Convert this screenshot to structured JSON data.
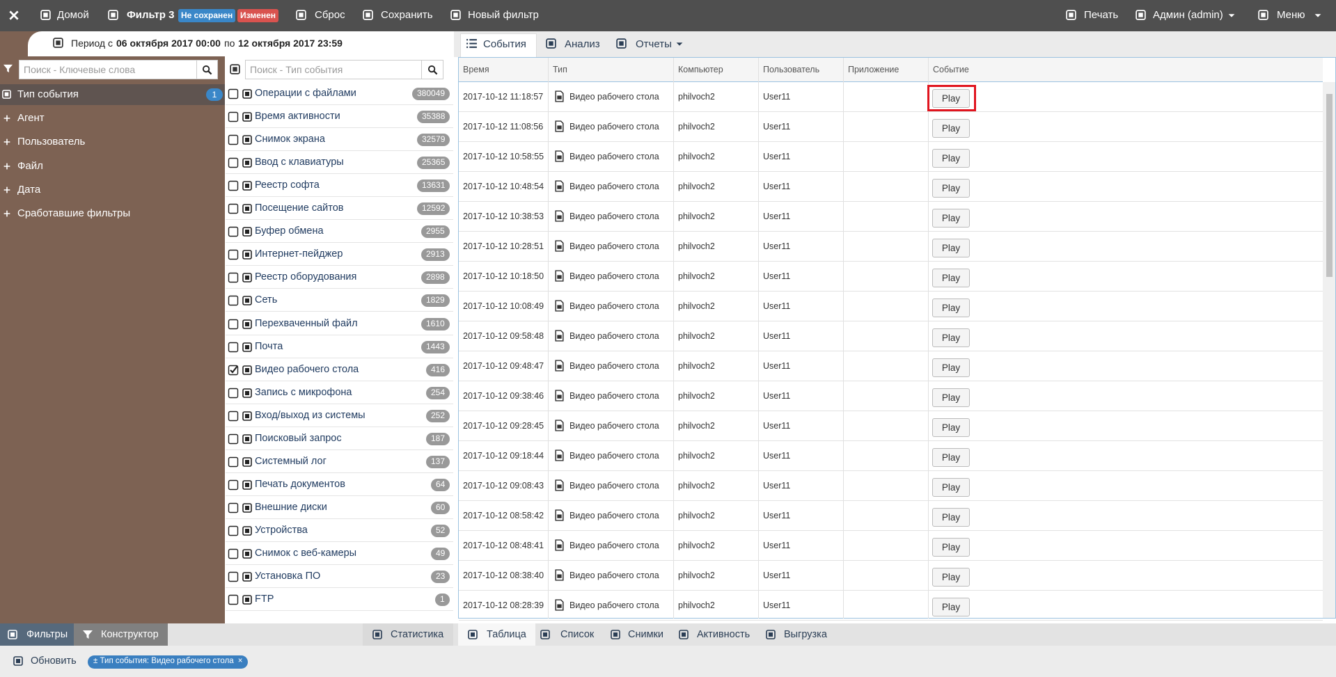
{
  "topbar": {
    "home": "Домой",
    "filter": "Фильтр 3",
    "badge_unsaved": "Не сохранен",
    "badge_changed": "Изменен",
    "reset": "Сброс",
    "save": "Сохранить",
    "new_filter": "Новый фильтр",
    "print": "Печать",
    "user": "Админ (admin)",
    "menu": "Меню"
  },
  "period": {
    "prefix": "Период с",
    "from": "06 октября 2017 00:00",
    "mid": "по",
    "to": "12 октября 2017 23:59"
  },
  "sidebar": {
    "search_placeholder": "Поиск - Ключевые слова",
    "items": [
      {
        "label": "Тип события",
        "badge": 1
      },
      {
        "label": "Агент"
      },
      {
        "label": "Пользователь"
      },
      {
        "label": "Файл"
      },
      {
        "label": "Дата"
      },
      {
        "label": "Сработавшие фильтры"
      }
    ]
  },
  "event_types": {
    "search_placeholder": "Поиск - Тип события",
    "items": [
      {
        "label": "Операции с файлами",
        "count": 380049,
        "checked": false
      },
      {
        "label": "Время активности",
        "count": 35388,
        "checked": false
      },
      {
        "label": "Снимок экрана",
        "count": 32579,
        "checked": false
      },
      {
        "label": "Ввод с клавиатуры",
        "count": 25365,
        "checked": false
      },
      {
        "label": "Реестр софта",
        "count": 13631,
        "checked": false
      },
      {
        "label": "Посещение сайтов",
        "count": 12592,
        "checked": false
      },
      {
        "label": "Буфер обмена",
        "count": 2955,
        "checked": false
      },
      {
        "label": "Интернет-пейджер",
        "count": 2913,
        "checked": false
      },
      {
        "label": "Реестр оборудования",
        "count": 2898,
        "checked": false
      },
      {
        "label": "Сеть",
        "count": 1829,
        "checked": false
      },
      {
        "label": "Перехваченный файл",
        "count": 1610,
        "checked": false
      },
      {
        "label": "Почта",
        "count": 1443,
        "checked": false
      },
      {
        "label": "Видео рабочего стола",
        "count": 416,
        "checked": true
      },
      {
        "label": "Запись с микрофона",
        "count": 254,
        "checked": false
      },
      {
        "label": "Вход/выход из системы",
        "count": 252,
        "checked": false
      },
      {
        "label": "Поисковый запрос",
        "count": 187,
        "checked": false
      },
      {
        "label": "Системный лог",
        "count": 137,
        "checked": false
      },
      {
        "label": "Печать документов",
        "count": 64,
        "checked": false
      },
      {
        "label": "Внешние диски",
        "count": 60,
        "checked": false
      },
      {
        "label": "Устройства",
        "count": 52,
        "checked": false
      },
      {
        "label": "Снимок с веб-камеры",
        "count": 49,
        "checked": false
      },
      {
        "label": "Установка ПО",
        "count": 23,
        "checked": false
      },
      {
        "label": "FTP",
        "count": 1,
        "checked": false
      }
    ]
  },
  "top_tabs": [
    "События",
    "Анализ",
    "Отчеты"
  ],
  "table": {
    "columns": [
      "Время",
      "Тип",
      "Компьютер",
      "Пользователь",
      "Приложение",
      "Событие"
    ],
    "highlight_row": 0,
    "rows": [
      {
        "time": "2017-10-12 11:18:57",
        "type": "Видео рабочего стола",
        "computer": "philvoch2",
        "user": "User11",
        "event": "Play"
      },
      {
        "time": "2017-10-12 11:08:56",
        "type": "Видео рабочего стола",
        "computer": "philvoch2",
        "user": "User11",
        "event": "Play"
      },
      {
        "time": "2017-10-12 10:58:55",
        "type": "Видео рабочего стола",
        "computer": "philvoch2",
        "user": "User11",
        "event": "Play"
      },
      {
        "time": "2017-10-12 10:48:54",
        "type": "Видео рабочего стола",
        "computer": "philvoch2",
        "user": "User11",
        "event": "Play"
      },
      {
        "time": "2017-10-12 10:38:53",
        "type": "Видео рабочего стола",
        "computer": "philvoch2",
        "user": "User11",
        "event": "Play"
      },
      {
        "time": "2017-10-12 10:28:51",
        "type": "Видео рабочего стола",
        "computer": "philvoch2",
        "user": "User11",
        "event": "Play"
      },
      {
        "time": "2017-10-12 10:18:50",
        "type": "Видео рабочего стола",
        "computer": "philvoch2",
        "user": "User11",
        "event": "Play"
      },
      {
        "time": "2017-10-12 10:08:49",
        "type": "Видео рабочего стола",
        "computer": "philvoch2",
        "user": "User11",
        "event": "Play"
      },
      {
        "time": "2017-10-12 09:58:48",
        "type": "Видео рабочего стола",
        "computer": "philvoch2",
        "user": "User11",
        "event": "Play"
      },
      {
        "time": "2017-10-12 09:48:47",
        "type": "Видео рабочего стола",
        "computer": "philvoch2",
        "user": "User11",
        "event": "Play"
      },
      {
        "time": "2017-10-12 09:38:46",
        "type": "Видео рабочего стола",
        "computer": "philvoch2",
        "user": "User11",
        "event": "Play"
      },
      {
        "time": "2017-10-12 09:28:45",
        "type": "Видео рабочего стола",
        "computer": "philvoch2",
        "user": "User11",
        "event": "Play"
      },
      {
        "time": "2017-10-12 09:18:44",
        "type": "Видео рабочего стола",
        "computer": "philvoch2",
        "user": "User11",
        "event": "Play"
      },
      {
        "time": "2017-10-12 09:08:43",
        "type": "Видео рабочего стола",
        "computer": "philvoch2",
        "user": "User11",
        "event": "Play"
      },
      {
        "time": "2017-10-12 08:58:42",
        "type": "Видео рабочего стола",
        "computer": "philvoch2",
        "user": "User11",
        "event": "Play"
      },
      {
        "time": "2017-10-12 08:48:41",
        "type": "Видео рабочего стола",
        "computer": "philvoch2",
        "user": "User11",
        "event": "Play"
      },
      {
        "time": "2017-10-12 08:38:40",
        "type": "Видео рабочего стола",
        "computer": "philvoch2",
        "user": "User11",
        "event": "Play"
      },
      {
        "time": "2017-10-12 08:28:39",
        "type": "Видео рабочего стола",
        "computer": "philvoch2",
        "user": "User11",
        "event": "Play"
      }
    ]
  },
  "bottom_tabs": {
    "left": [
      "Фильтры",
      "Конструктор"
    ],
    "stats": "Статистика",
    "right": [
      "Таблица",
      "Список",
      "Снимки",
      "Активность",
      "Выгрузка"
    ]
  },
  "footer": {
    "refresh": "Обновить",
    "chip": "± Тип события: Видео рабочего стола",
    "chip_close": "×"
  }
}
